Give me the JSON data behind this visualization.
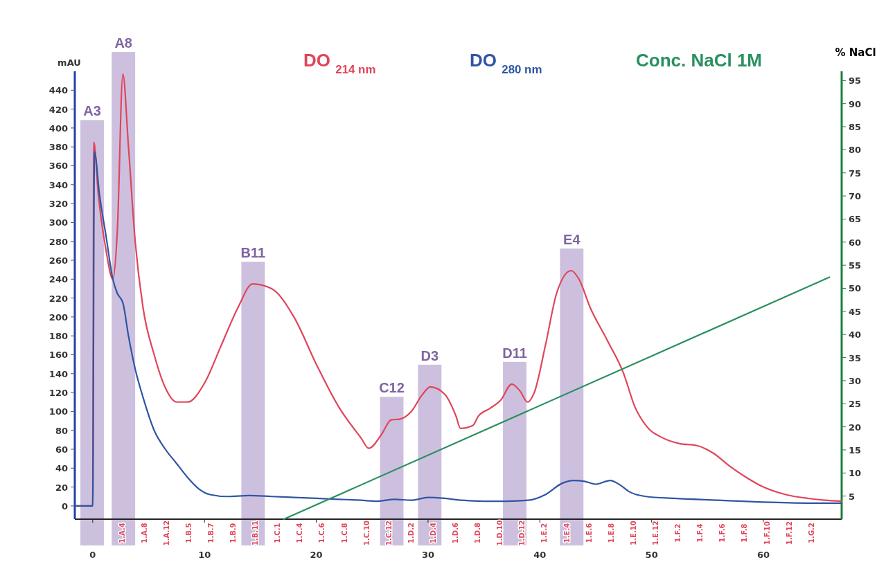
{
  "chart_data": {
    "type": "line",
    "xlabel": null,
    "ylabel": "mAU",
    "y2label": "% NaCl",
    "xlim": [
      -1.6,
      67
    ],
    "xticks": [
      0,
      10,
      20,
      30,
      40,
      50,
      60
    ],
    "ylim": [
      -14,
      460
    ],
    "yticks": [
      0,
      20,
      40,
      60,
      80,
      100,
      120,
      140,
      160,
      180,
      200,
      220,
      240,
      260,
      280,
      300,
      320,
      340,
      360,
      380,
      400,
      420,
      440
    ],
    "y2lim": [
      0,
      97
    ],
    "y2ticks": [
      5,
      10,
      15,
      20,
      25,
      30,
      35,
      40,
      45,
      50,
      55,
      60,
      65,
      70,
      75,
      80,
      85,
      90,
      95
    ],
    "legend": "top",
    "grid": false,
    "marker": "none",
    "line_style": "solid",
    "series": [
      {
        "name": "DO $_{214 nm}$",
        "color": "#e0455a",
        "x": [
          -1.5,
          0,
          0.1,
          0.5,
          1.2,
          1.8,
          2.2,
          2.7,
          3.2,
          3.8,
          4.5,
          5.5,
          6.5,
          7.5,
          8.5,
          10,
          11.5,
          13,
          14.3,
          16,
          18,
          20,
          22,
          24,
          24.7,
          25.8,
          26.7,
          27.5,
          28.5,
          29.5,
          30.2,
          31.5,
          32.5,
          32.9,
          34,
          34.5,
          35.5,
          36.5,
          37.5,
          38.2,
          38.9,
          39.5,
          40.5,
          41.5,
          42.8,
          43.5,
          44.5,
          46,
          47.5,
          48.5,
          49.5,
          51,
          52.5,
          54,
          55.5,
          57,
          58.5,
          60,
          62,
          64,
          65.5,
          67
        ],
        "values": [
          0,
          0,
          385,
          330,
          270,
          240,
          290,
          457,
          380,
          280,
          210,
          160,
          125,
          110,
          110,
          130,
          170,
          210,
          235,
          230,
          200,
          150,
          105,
          72,
          61,
          75,
          91,
          92,
          100,
          118,
          126,
          118,
          95,
          82,
          85,
          95,
          103,
          112,
          129,
          122,
          110,
          120,
          170,
          225,
          249,
          240,
          210,
          176,
          140,
          105,
          85,
          72,
          66,
          64,
          56,
          42,
          30,
          20,
          12,
          8,
          6,
          5
        ]
      },
      {
        "name": "DO $_{280  nm}$",
        "color": "#2f55a4",
        "x": [
          -1.5,
          0,
          0.15,
          0.6,
          1.2,
          1.8,
          2.2,
          2.7,
          3.2,
          3.8,
          4.5,
          5.5,
          6.5,
          7.5,
          8.5,
          9.5,
          10.5,
          12,
          14,
          16,
          18,
          20,
          22,
          24,
          25.5,
          27,
          28.5,
          30,
          31.5,
          33,
          35,
          37,
          39,
          40.5,
          42,
          43,
          44,
          45,
          46.3,
          47.2,
          48,
          49.5,
          52,
          56,
          60,
          64,
          67
        ],
        "values": [
          0,
          0,
          375,
          330,
          285,
          240,
          225,
          215,
          180,
          145,
          115,
          80,
          60,
          45,
          30,
          18,
          12,
          10,
          11,
          10,
          9,
          8,
          7,
          6,
          5,
          7,
          6,
          9,
          8,
          6,
          5,
          5,
          6,
          12,
          24,
          27,
          26,
          23,
          27,
          22,
          15,
          10,
          8,
          6,
          4,
          3,
          3
        ]
      },
      {
        "name": "Conc. NaCl 1M",
        "color": "#2a9060",
        "axis": "y2",
        "x": [
          17.1,
          65.9
        ],
        "values": [
          0,
          52.4
        ]
      }
    ],
    "bands": [
      {
        "axis": "x",
        "from": -1.1,
        "to": 1.0,
        "label": "A3",
        "color": "#c4b5d8"
      },
      {
        "axis": "x",
        "from": 1.7,
        "to": 3.8,
        "label": "A8",
        "color": "#c4b5d8"
      },
      {
        "axis": "x",
        "from": 13.3,
        "to": 15.4,
        "label": "B11",
        "color": "#c4b5d8"
      },
      {
        "axis": "x",
        "from": 25.7,
        "to": 27.8,
        "label": "C12",
        "color": "#c4b5d8"
      },
      {
        "axis": "x",
        "from": 29.1,
        "to": 31.2,
        "label": "D3",
        "color": "#c4b5d8"
      },
      {
        "axis": "x",
        "from": 36.7,
        "to": 38.8,
        "label": "D11",
        "color": "#c4b5d8"
      },
      {
        "axis": "x",
        "from": 41.8,
        "to": 43.9,
        "label": "E4",
        "color": "#c4b5d8"
      }
    ],
    "annotations": [
      "1.A.4",
      "1.A.8",
      "1.A.12",
      "1.B.5",
      "1.B.7",
      "1.B.9",
      "1.B.11",
      "1.C.1",
      "1.C.4",
      "1.C.6",
      "1.C.8",
      "1.C.10",
      "1.C.12",
      "1.D.2",
      "1.D.4",
      "1.D.6",
      "1.D.8",
      "1.D.10",
      "1.D.12",
      "1.E.2",
      "1.E.4",
      "1.E.6",
      "1.E.8",
      "1.E.10",
      "1.E.12",
      "1.F.2",
      "1.F.4",
      "1.F.6",
      "1.F.8",
      "1.F.10",
      "1.F.12",
      "1.G.2"
    ]
  }
}
